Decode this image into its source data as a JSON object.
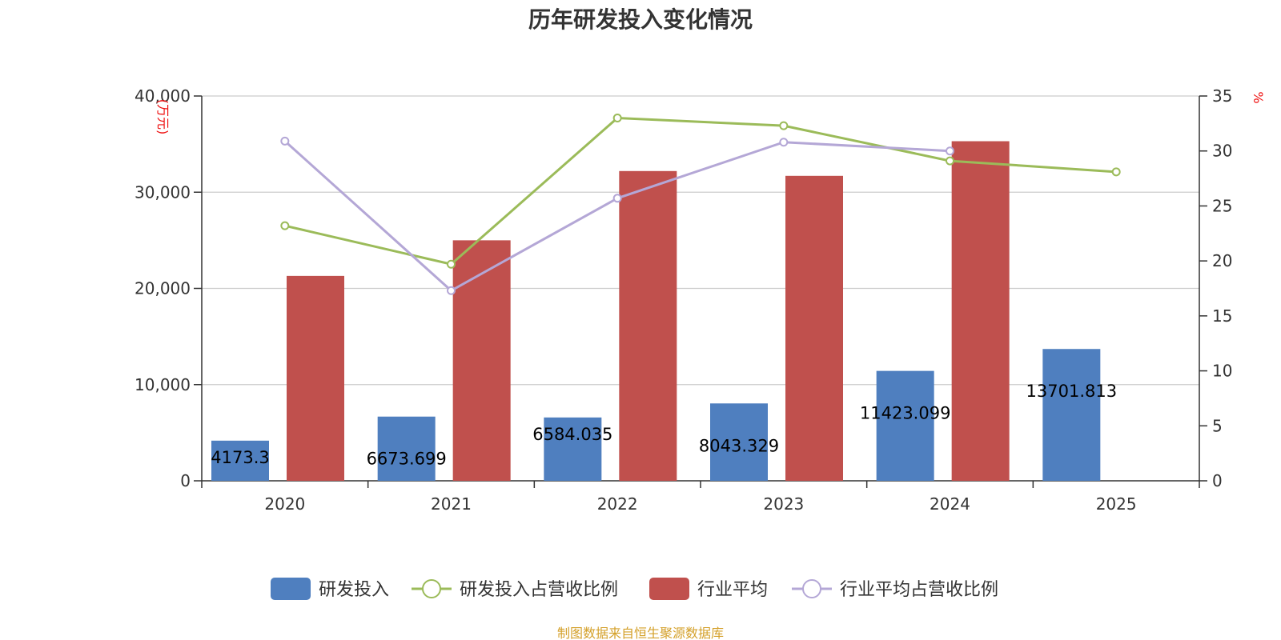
{
  "chart_data": {
    "type": "bar",
    "title": "历年研发投入变化情况",
    "categories": [
      "2020",
      "2021",
      "2022",
      "2023",
      "2024",
      "2025"
    ],
    "y_left": {
      "unit": "(万元)",
      "ticks": [
        "0",
        "10,000",
        "20,000",
        "30,000",
        "40,000"
      ],
      "range": [
        0,
        40000
      ]
    },
    "y_right": {
      "unit": "%",
      "ticks": [
        "0",
        "5",
        "10",
        "15",
        "20",
        "25",
        "30",
        "35"
      ],
      "range": [
        0,
        35
      ]
    },
    "grid": true,
    "legend_position": "bottom",
    "series": [
      {
        "name": "研发投入",
        "type": "bar",
        "axis": "left",
        "color": "#4f7fbf",
        "values": [
          4173.3,
          6673.699,
          6584.035,
          8043.329,
          11423.099,
          13701.813
        ],
        "labels": [
          "4173.3",
          "6673.699",
          "6584.035",
          "8043.329",
          "11423.099",
          "13701.813"
        ]
      },
      {
        "name": "研发投入占营收比例",
        "type": "line",
        "axis": "right",
        "color": "#9bbb59",
        "values": [
          23.2,
          19.7,
          33.0,
          32.3,
          29.1,
          28.1
        ]
      },
      {
        "name": "行业平均",
        "type": "bar",
        "axis": "left",
        "color": "#c0504d",
        "values": [
          21300,
          25000,
          32200,
          31700,
          35300,
          null
        ]
      },
      {
        "name": "行业平均占营收比例",
        "type": "line",
        "axis": "right",
        "color": "#b4a7d6",
        "values": [
          30.9,
          17.3,
          25.7,
          30.8,
          30.0,
          null
        ]
      }
    ]
  },
  "source_note": "制图数据来自恒生聚源数据库"
}
